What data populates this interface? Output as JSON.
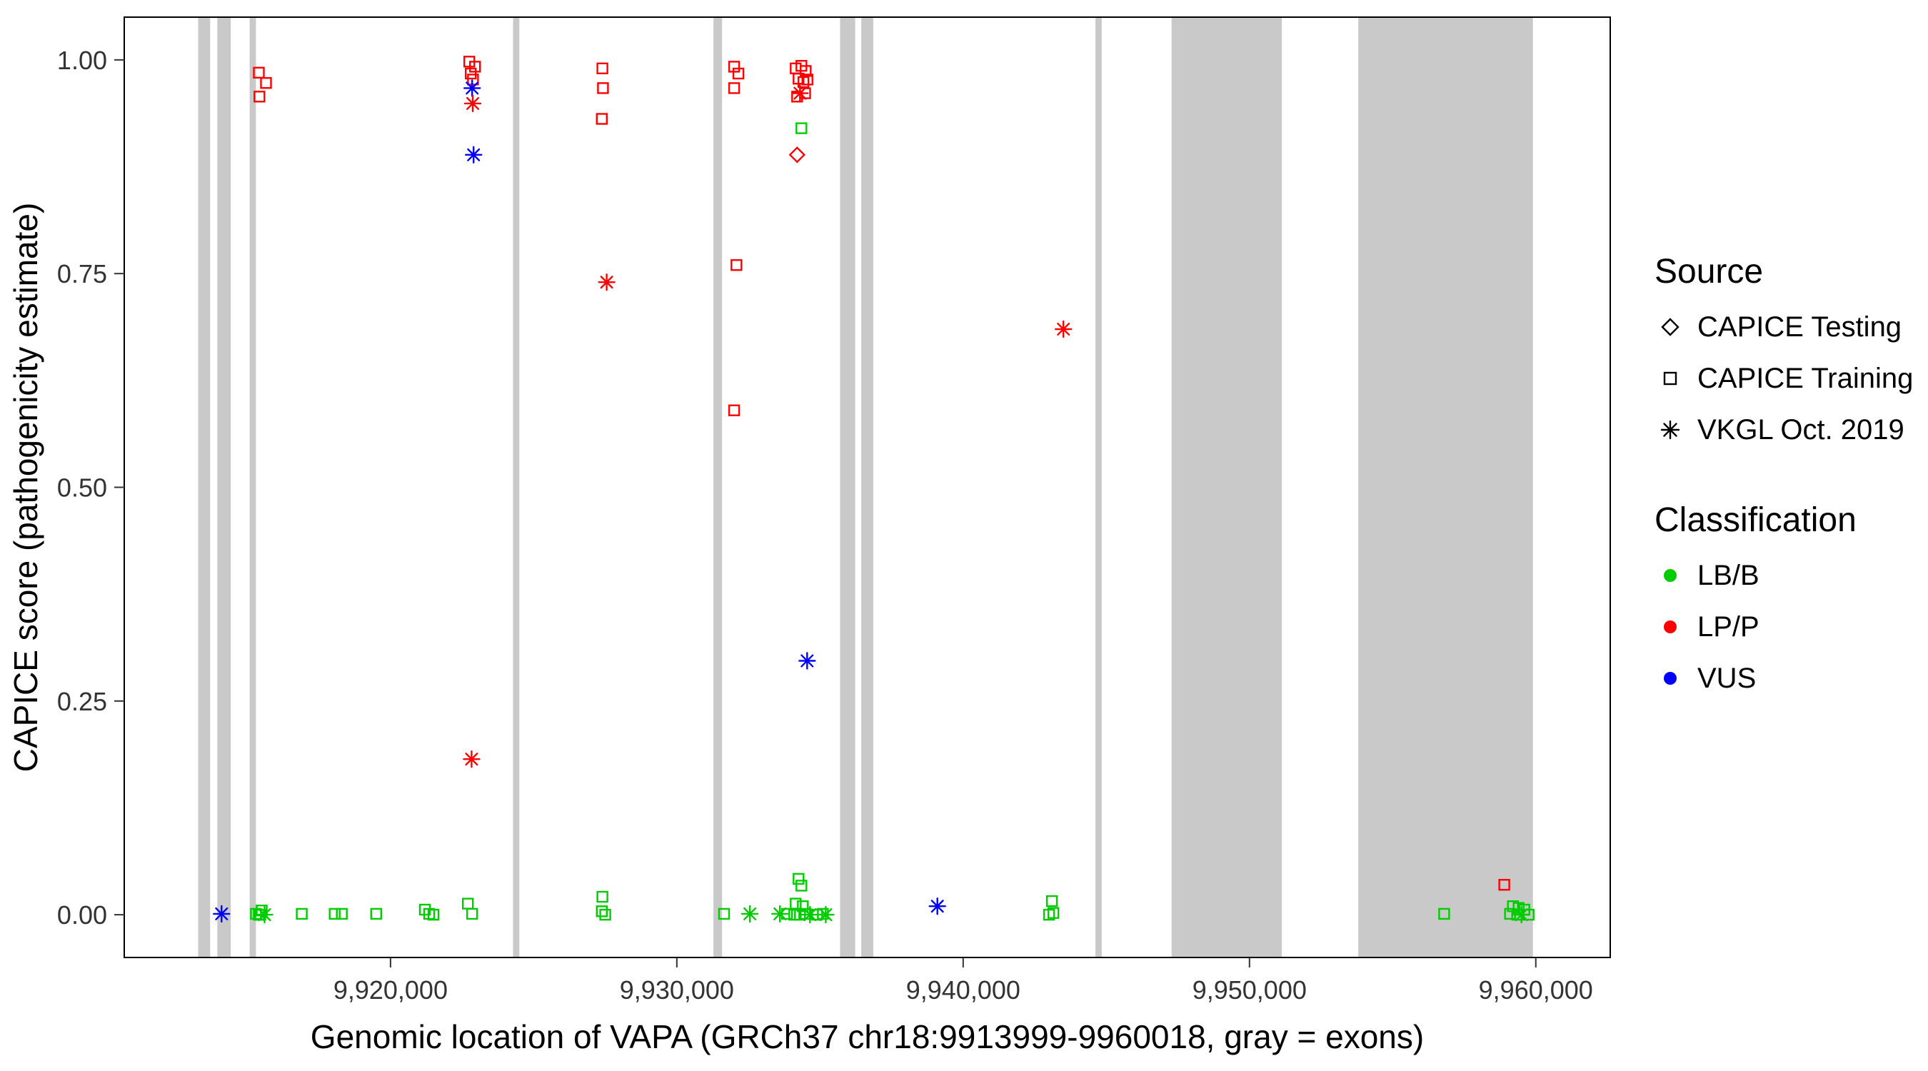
{
  "page": {
    "background": "#FFFFFF"
  },
  "figure": {
    "x_axis": {
      "title": "Genomic location of VAPA (GRCh37 chr18:9913999-9960018, gray = exons)",
      "ticks": [
        {
          "value": 9920000,
          "label": "9,920,000"
        },
        {
          "value": 9930000,
          "label": "9,930,000"
        },
        {
          "value": 9940000,
          "label": "9,940,000"
        },
        {
          "value": 9950000,
          "label": "9,950,000"
        },
        {
          "value": 9960000,
          "label": "9,960,000"
        }
      ]
    },
    "y_axis": {
      "title": "CAPICE score (pathogenicity estimate)",
      "ticks": [
        {
          "value": 0,
          "label": "0.00"
        },
        {
          "value": 0.25,
          "label": "0.25"
        },
        {
          "value": 0.5,
          "label": "0.50"
        },
        {
          "value": 0.75,
          "label": "0.75"
        },
        {
          "value": 1,
          "label": "1.00"
        }
      ]
    },
    "legend": {
      "source": {
        "title": "Source",
        "items": [
          {
            "shape": "diamond",
            "label": "CAPICE Testing"
          },
          {
            "shape": "square",
            "label": "CAPICE Training"
          },
          {
            "shape": "asterisk",
            "label": "VKGL Oct. 2019"
          }
        ]
      },
      "classification": {
        "title": "Classification",
        "items": [
          {
            "color": "#00CC00",
            "label": "LB/B"
          },
          {
            "color": "#FF0000",
            "label": "LP/P"
          },
          {
            "color": "#0000FF",
            "label": "VUS"
          }
        ]
      }
    }
  },
  "colors": {
    "exon": "#C9C9C9",
    "panel_border": "#000000",
    "tick": "#333333"
  },
  "chart_data": {
    "type": "scatter",
    "title": "",
    "xlabel": "Genomic location of VAPA (GRCh37 chr18:9913999-9960018, gray = exons)",
    "ylabel": "CAPICE score (pathogenicity estimate)",
    "gene": "VAPA",
    "gene_region": "chr18:9913999-9960018",
    "x_domain": [
      9910700,
      9962600
    ],
    "y_domain": [
      -0.05,
      1.05
    ],
    "x_ticks": [
      9920000,
      9930000,
      9940000,
      9950000,
      9960000
    ],
    "y_ticks": [
      0,
      0.25,
      0.5,
      0.75,
      1.0
    ],
    "grid": false,
    "legend_position": "right",
    "shape_map": {
      "testing": "diamond",
      "training": "square",
      "vkgl": "asterisk"
    },
    "color_map": {
      "LB/B": "#00CC00",
      "LP/P": "#FF0000",
      "VUS": "#0000FF"
    },
    "exons": [
      [
        9913280,
        9913700
      ],
      [
        9913950,
        9914420
      ],
      [
        9915080,
        9915300
      ],
      [
        9924280,
        9924500
      ],
      [
        9931280,
        9931580
      ],
      [
        9935700,
        9936230
      ],
      [
        9936440,
        9936860
      ],
      [
        9944620,
        9944840
      ],
      [
        9947280,
        9951130
      ],
      [
        9953800,
        9959900
      ]
    ],
    "points": [
      [
        9915400,
        0.985,
        "training",
        "LP/P"
      ],
      [
        9915650,
        0.973,
        "training",
        "LP/P"
      ],
      [
        9915420,
        0.957,
        "training",
        "LP/P"
      ],
      [
        9922750,
        0.998,
        "training",
        "LP/P"
      ],
      [
        9922950,
        0.992,
        "training",
        "LP/P"
      ],
      [
        9922800,
        0.984,
        "training",
        "LP/P"
      ],
      [
        9922880,
        0.977,
        "training",
        "LP/P"
      ],
      [
        9922850,
        0.967,
        "vkgl",
        "VUS"
      ],
      [
        9922870,
        0.949,
        "vkgl",
        "LP/P"
      ],
      [
        9922900,
        0.889,
        "vkgl",
        "VUS"
      ],
      [
        9922830,
        0.182,
        "vkgl",
        "LP/P"
      ],
      [
        9922700,
        0.013,
        "training",
        "LB/B"
      ],
      [
        9922850,
        0.001,
        "training",
        "LB/B"
      ],
      [
        9921200,
        0.006,
        "training",
        "LB/B"
      ],
      [
        9921350,
        0.001,
        "training",
        "LB/B"
      ],
      [
        9921500,
        0.0,
        "training",
        "LB/B"
      ],
      [
        9927400,
        0.99,
        "training",
        "LP/P"
      ],
      [
        9927420,
        0.967,
        "training",
        "LP/P"
      ],
      [
        9927380,
        0.931,
        "training",
        "LP/P"
      ],
      [
        9927550,
        0.74,
        "vkgl",
        "LP/P"
      ],
      [
        9927400,
        0.021,
        "training",
        "LB/B"
      ],
      [
        9927380,
        0.004,
        "training",
        "LB/B"
      ],
      [
        9927500,
        0.0,
        "training",
        "LB/B"
      ],
      [
        9932000,
        0.992,
        "training",
        "LP/P"
      ],
      [
        9932150,
        0.984,
        "training",
        "LP/P"
      ],
      [
        9932000,
        0.967,
        "training",
        "LP/P"
      ],
      [
        9932080,
        0.76,
        "training",
        "LP/P"
      ],
      [
        9932000,
        0.59,
        "training",
        "LP/P"
      ],
      [
        9931650,
        0.001,
        "training",
        "LB/B"
      ],
      [
        9932550,
        0.001,
        "vkgl",
        "LB/B"
      ],
      [
        9934150,
        0.99,
        "training",
        "LP/P"
      ],
      [
        9934350,
        0.993,
        "training",
        "LP/P"
      ],
      [
        9934500,
        0.987,
        "training",
        "LP/P"
      ],
      [
        9934250,
        0.978,
        "training",
        "LP/P"
      ],
      [
        9934420,
        0.974,
        "training",
        "LP/P"
      ],
      [
        9934560,
        0.977,
        "training",
        "LP/P"
      ],
      [
        9934480,
        0.961,
        "training",
        "LP/P"
      ],
      [
        9934200,
        0.957,
        "training",
        "LP/P"
      ],
      [
        9934300,
        0.961,
        "vkgl",
        "LP/P"
      ],
      [
        9934350,
        0.92,
        "training",
        "LB/B"
      ],
      [
        9934200,
        0.889,
        "testing",
        "LP/P"
      ],
      [
        9934550,
        0.297,
        "vkgl",
        "VUS"
      ],
      [
        9934250,
        0.042,
        "training",
        "LB/B"
      ],
      [
        9934350,
        0.034,
        "training",
        "LB/B"
      ],
      [
        9934150,
        0.013,
        "training",
        "LB/B"
      ],
      [
        9934400,
        0.01,
        "training",
        "LB/B"
      ],
      [
        9933850,
        0.001,
        "training",
        "LB/B"
      ],
      [
        9934100,
        0.0,
        "training",
        "LB/B"
      ],
      [
        9934300,
        0.0,
        "training",
        "LB/B"
      ],
      [
        9934500,
        0.001,
        "training",
        "LB/B"
      ],
      [
        9934900,
        0.0,
        "training",
        "LB/B"
      ],
      [
        9935100,
        0.001,
        "training",
        "LB/B"
      ],
      [
        9933600,
        0.001,
        "vkgl",
        "LB/B"
      ],
      [
        9934650,
        0.0,
        "vkgl",
        "LB/B"
      ],
      [
        9935200,
        0.0,
        "vkgl",
        "LB/B"
      ],
      [
        9939100,
        0.01,
        "vkgl",
        "VUS"
      ],
      [
        9943500,
        0.685,
        "vkgl",
        "LP/P"
      ],
      [
        9943100,
        0.016,
        "training",
        "LB/B"
      ],
      [
        9943150,
        0.002,
        "training",
        "LB/B"
      ],
      [
        9943000,
        0.0,
        "training",
        "LB/B"
      ],
      [
        9914100,
        0.001,
        "vkgl",
        "VUS"
      ],
      [
        9915300,
        0.001,
        "training",
        "LB/B"
      ],
      [
        9915450,
        0.0,
        "training",
        "LB/B"
      ],
      [
        9915500,
        0.005,
        "training",
        "LB/B"
      ],
      [
        9915400,
        0.0,
        "training",
        "LB/B"
      ],
      [
        9915600,
        0.0,
        "vkgl",
        "LB/B"
      ],
      [
        9916900,
        0.001,
        "training",
        "LB/B"
      ],
      [
        9918050,
        0.001,
        "training",
        "LB/B"
      ],
      [
        9918300,
        0.001,
        "training",
        "LB/B"
      ],
      [
        9919500,
        0.001,
        "training",
        "LB/B"
      ],
      [
        9956800,
        0.001,
        "training",
        "LB/B"
      ],
      [
        9958900,
        0.035,
        "training",
        "LP/P"
      ],
      [
        9959200,
        0.01,
        "training",
        "LB/B"
      ],
      [
        9959400,
        0.008,
        "training",
        "LB/B"
      ],
      [
        9959100,
        0.001,
        "training",
        "LB/B"
      ],
      [
        9959350,
        0.0,
        "training",
        "LB/B"
      ],
      [
        9959600,
        0.006,
        "training",
        "LB/B"
      ],
      [
        9959750,
        0.0,
        "training",
        "LB/B"
      ],
      [
        9959500,
        0.0,
        "vkgl",
        "LB/B"
      ]
    ]
  }
}
